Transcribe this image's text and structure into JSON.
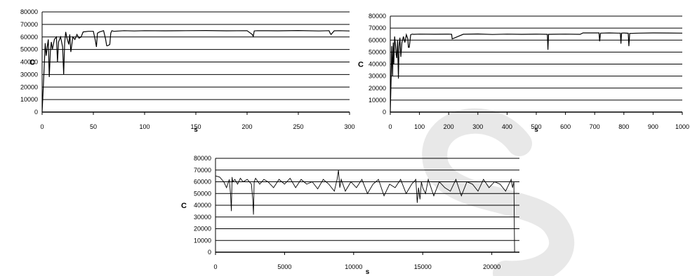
{
  "colors": {
    "gridline": "#000000",
    "series": "#000000",
    "watermark": "#e8e8e8"
  },
  "watermark_icon": "faint-s-watermark",
  "chart_data": [
    {
      "type": "line",
      "title": "",
      "xlabel": "s",
      "ylabel": "C",
      "xlim": [
        0,
        300
      ],
      "ylim": [
        0,
        80000
      ],
      "xticks": [
        0,
        50,
        100,
        150,
        200,
        250,
        300
      ],
      "yticks": [
        0,
        10000,
        20000,
        30000,
        40000,
        50000,
        60000,
        70000,
        80000
      ],
      "grid": "horizontal",
      "series": [
        {
          "x": [
            0,
            1,
            2,
            3,
            4,
            5,
            6,
            7,
            8,
            9,
            10,
            12,
            14,
            15,
            16,
            18,
            20,
            21,
            22,
            23,
            24,
            26,
            27,
            28,
            30,
            32,
            34,
            36,
            38,
            40,
            45,
            50,
            52,
            53,
            54,
            56,
            58,
            60,
            62,
            63,
            64,
            66,
            67,
            68,
            70,
            80,
            90,
            100,
            120,
            140,
            160,
            180,
            200,
            205,
            206,
            207,
            210,
            230,
            250,
            270,
            280,
            281,
            282,
            285,
            290,
            300
          ],
          "y": [
            0,
            18000,
            35000,
            55000,
            45000,
            52000,
            58000,
            28000,
            48000,
            56000,
            50000,
            58000,
            60000,
            40000,
            56000,
            60000,
            52000,
            30000,
            55000,
            64000,
            60000,
            54000,
            62000,
            48000,
            60000,
            58000,
            62000,
            59000,
            60000,
            64000,
            64500,
            64500,
            57000,
            52000,
            63000,
            64000,
            64500,
            65000,
            58000,
            53000,
            53000,
            54000,
            63000,
            65000,
            64500,
            65000,
            64800,
            65000,
            64900,
            65000,
            65100,
            64900,
            65000,
            62000,
            60500,
            64800,
            65000,
            64900,
            65100,
            64800,
            65000,
            63000,
            62000,
            64900,
            65000,
            64800
          ]
        }
      ]
    },
    {
      "type": "line",
      "title": "",
      "xlabel": "s",
      "ylabel": "C",
      "xlim": [
        0,
        1000
      ],
      "ylim": [
        0,
        80000
      ],
      "xticks": [
        0,
        100,
        200,
        300,
        400,
        500,
        600,
        700,
        800,
        900,
        1000
      ],
      "yticks": [
        0,
        10000,
        20000,
        30000,
        40000,
        50000,
        60000,
        70000,
        80000
      ],
      "grid": "horizontal",
      "series": [
        {
          "x": [
            0,
            3,
            5,
            8,
            10,
            12,
            15,
            18,
            20,
            22,
            25,
            28,
            30,
            33,
            36,
            40,
            45,
            50,
            55,
            60,
            62,
            65,
            70,
            75,
            80,
            100,
            150,
            200,
            210,
            212,
            250,
            300,
            350,
            400,
            450,
            500,
            538,
            540,
            542,
            560,
            600,
            650,
            660,
            700,
            715,
            717,
            720,
            750,
            780,
            788,
            790,
            792,
            800,
            815,
            817,
            820,
            850,
            900,
            950,
            1000
          ],
          "y": [
            0,
            28000,
            55000,
            30000,
            58000,
            40000,
            63000,
            55000,
            48000,
            45000,
            60000,
            28000,
            55000,
            62000,
            46000,
            58000,
            63000,
            58000,
            64500,
            61000,
            54000,
            54000,
            64500,
            65000,
            64800,
            65000,
            64900,
            65000,
            64800,
            61000,
            64900,
            65100,
            64700,
            65000,
            64800,
            65000,
            64800,
            52000,
            64800,
            64900,
            65000,
            64800,
            66000,
            66000,
            66000,
            59000,
            65800,
            66000,
            65800,
            65800,
            57000,
            65800,
            65900,
            65700,
            55000,
            65600,
            65800,
            66000,
            65900,
            65800
          ]
        }
      ]
    },
    {
      "type": "line",
      "title": "",
      "xlabel": "s",
      "ylabel": "C",
      "xlim": [
        0,
        22000
      ],
      "ylim": [
        0,
        80000
      ],
      "xticks": [
        0,
        5000,
        10000,
        15000,
        20000
      ],
      "yticks": [
        0,
        10000,
        20000,
        30000,
        40000,
        50000,
        60000,
        70000,
        80000
      ],
      "grid": "horizontal",
      "series": [
        {
          "x": [
            0,
            300,
            600,
            800,
            1000,
            1100,
            1150,
            1200,
            1250,
            1400,
            1600,
            1800,
            2000,
            2300,
            2600,
            2700,
            2750,
            2800,
            2900,
            3200,
            3500,
            3800,
            4200,
            4600,
            5000,
            5400,
            5800,
            6200,
            6600,
            7000,
            7400,
            7800,
            8200,
            8600,
            8800,
            8900,
            9000,
            9100,
            9400,
            9800,
            10200,
            10600,
            11000,
            11400,
            11800,
            12200,
            12600,
            13000,
            13400,
            13800,
            14200,
            14500,
            14600,
            14700,
            14800,
            14900,
            15000,
            15200,
            15400,
            15800,
            16200,
            16600,
            17000,
            17400,
            17800,
            18200,
            18600,
            19000,
            19400,
            19800,
            20200,
            20600,
            21000,
            21400,
            21500,
            21600,
            21650,
            21700
          ],
          "y": [
            65000,
            64000,
            60000,
            55000,
            62000,
            48000,
            35000,
            64000,
            60000,
            62000,
            58000,
            63000,
            60000,
            62000,
            58000,
            45000,
            32000,
            60000,
            63000,
            58000,
            62000,
            60000,
            55000,
            62000,
            58000,
            63000,
            55000,
            62000,
            58000,
            60000,
            54000,
            62000,
            58000,
            52000,
            62000,
            70000,
            55000,
            62000,
            52000,
            60000,
            55000,
            62000,
            50000,
            58000,
            62000,
            48000,
            58000,
            55000,
            62000,
            50000,
            58000,
            62000,
            42000,
            55000,
            45000,
            60000,
            55000,
            50000,
            62000,
            48000,
            60000,
            55000,
            52000,
            62000,
            48000,
            60000,
            58000,
            52000,
            62000,
            55000,
            60000,
            58000,
            52000,
            62000,
            55000,
            60000,
            0,
            0
          ]
        }
      ]
    }
  ]
}
